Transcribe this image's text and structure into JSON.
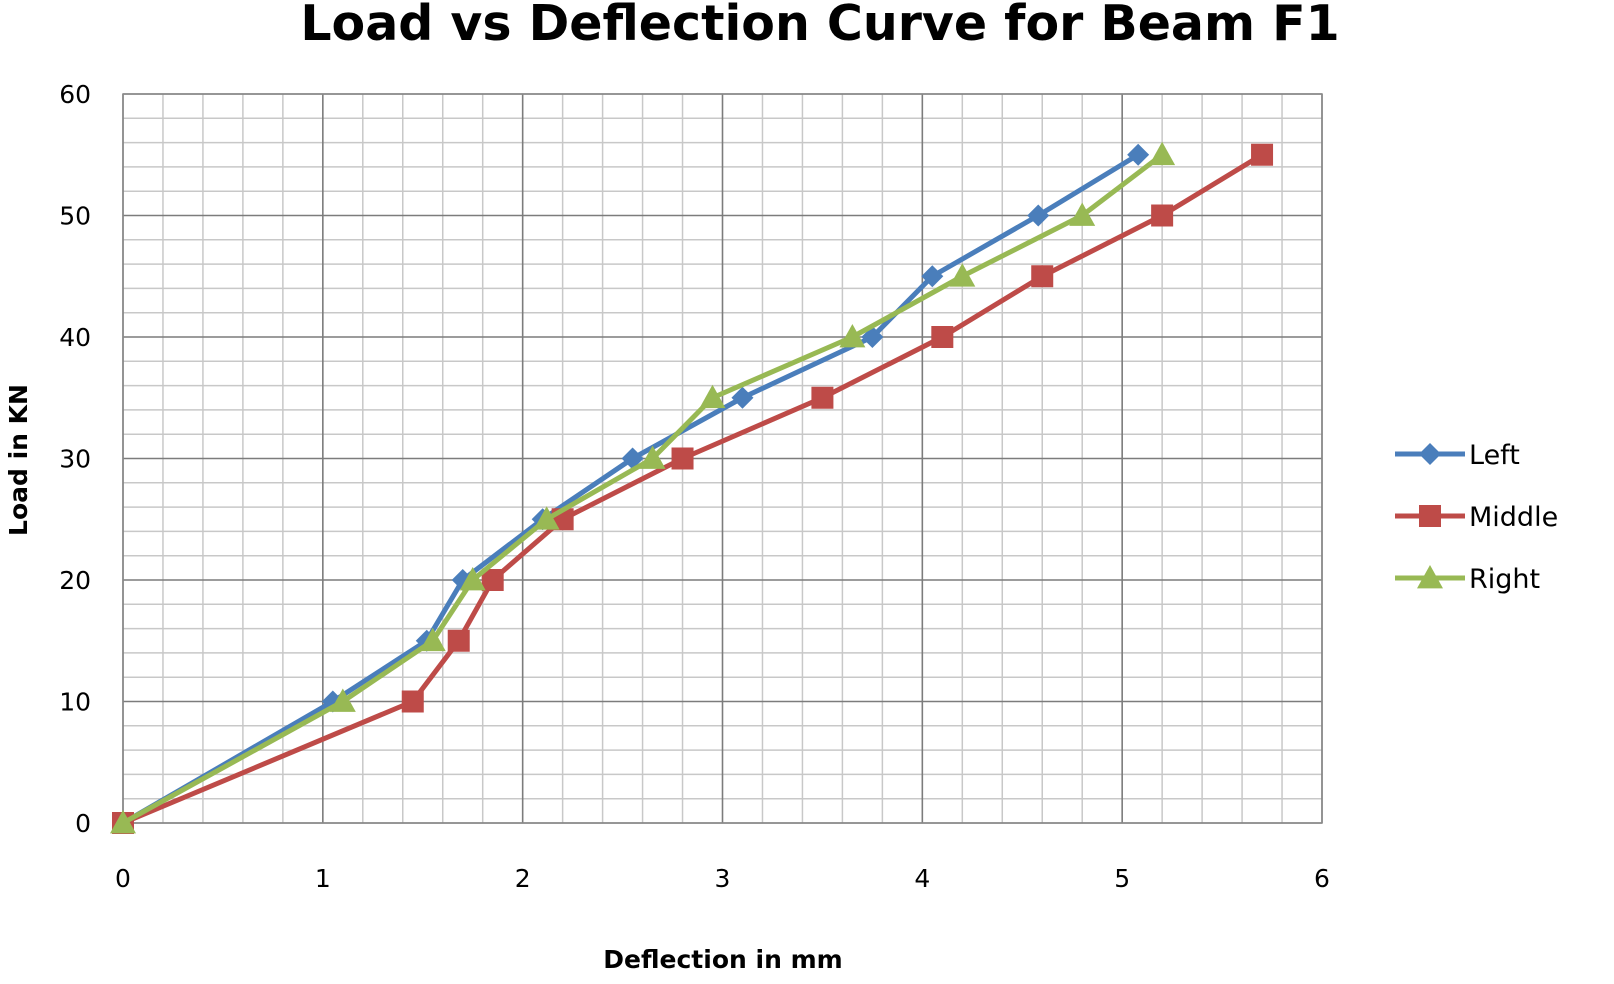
{
  "chart_data": {
    "type": "line",
    "title": "Load vs Deflection Curve for Beam F1",
    "xlabel": "Deflection in mm",
    "ylabel": "Load in KN",
    "xlim": [
      0,
      6
    ],
    "ylim": [
      0,
      60
    ],
    "x_ticks": [
      0,
      1,
      2,
      3,
      4,
      5,
      6
    ],
    "y_ticks": [
      0,
      10,
      20,
      30,
      40,
      50,
      60
    ],
    "x_minor_step": 0.2,
    "y_minor_step": 2,
    "grid": true,
    "legend_position": "right",
    "series": [
      {
        "name": "Left",
        "color": "#4a7ebb",
        "marker": "diamond",
        "points": [
          [
            0,
            0
          ],
          [
            1.05,
            10
          ],
          [
            1.52,
            15
          ],
          [
            1.7,
            20
          ],
          [
            2.1,
            25
          ],
          [
            2.55,
            30
          ],
          [
            3.1,
            35
          ],
          [
            3.75,
            40
          ],
          [
            4.05,
            45
          ],
          [
            4.58,
            50
          ],
          [
            5.08,
            55
          ]
        ]
      },
      {
        "name": "Middle",
        "color": "#be4b48",
        "marker": "square",
        "points": [
          [
            0,
            0
          ],
          [
            1.45,
            10
          ],
          [
            1.68,
            15
          ],
          [
            1.85,
            20
          ],
          [
            2.2,
            25
          ],
          [
            2.8,
            30
          ],
          [
            3.5,
            35
          ],
          [
            4.1,
            40
          ],
          [
            4.6,
            45
          ],
          [
            5.2,
            50
          ],
          [
            5.7,
            55
          ]
        ]
      },
      {
        "name": "Right",
        "color": "#98b954",
        "marker": "triangle",
        "points": [
          [
            0,
            0
          ],
          [
            1.1,
            10
          ],
          [
            1.55,
            15
          ],
          [
            1.75,
            20
          ],
          [
            2.12,
            25
          ],
          [
            2.65,
            30
          ],
          [
            2.95,
            35
          ],
          [
            3.65,
            40
          ],
          [
            4.2,
            45
          ],
          [
            4.8,
            50
          ],
          [
            5.2,
            55
          ]
        ]
      }
    ]
  }
}
